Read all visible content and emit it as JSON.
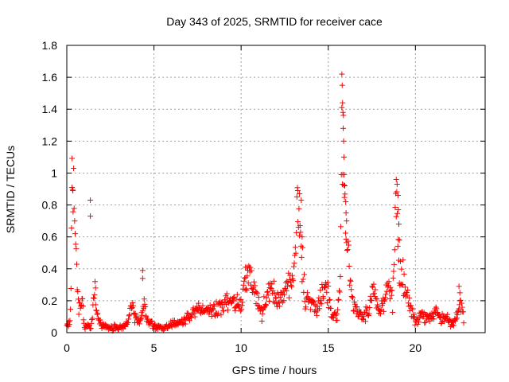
{
  "chart_data": {
    "type": "scatter",
    "title": "Day 343 of 2025, SRMTID for receiver cace",
    "xlabel": "GPS time / hours",
    "ylabel": "SRMTID / TECUs",
    "xlim": [
      0,
      24
    ],
    "ylim": [
      0,
      1.8
    ],
    "x_ticks": [
      0,
      5,
      10,
      15,
      20
    ],
    "x_tick_labels": [
      "0",
      "5",
      "10",
      "15",
      "20"
    ],
    "y_ticks": [
      0,
      0.2,
      0.4,
      0.6,
      0.8,
      1.0,
      1.2,
      1.4,
      1.6,
      1.8
    ],
    "y_tick_labels": [
      "0",
      "0.2",
      "0.4",
      "0.6",
      "0.8",
      "1",
      "1.2",
      "1.4",
      "1.6",
      "1.8"
    ],
    "grid": true,
    "marker": "+",
    "color": "#ff0000",
    "series": [
      {
        "name": "SRMTID",
        "profile": [
          [
            0.0,
            0.05
          ],
          [
            0.2,
            0.06
          ],
          [
            0.3,
            0.9
          ],
          [
            0.4,
            0.88
          ],
          [
            0.5,
            0.55
          ],
          [
            0.6,
            0.3
          ],
          [
            0.7,
            0.15
          ],
          [
            0.9,
            0.2
          ],
          [
            1.0,
            0.05
          ],
          [
            1.3,
            0.04
          ],
          [
            1.4,
            0.04
          ],
          [
            1.6,
            0.25
          ],
          [
            1.8,
            0.08
          ],
          [
            2.0,
            0.04
          ],
          [
            2.5,
            0.03
          ],
          [
            3.0,
            0.03
          ],
          [
            3.5,
            0.05
          ],
          [
            3.7,
            0.18
          ],
          [
            3.9,
            0.1
          ],
          [
            4.2,
            0.06
          ],
          [
            4.4,
            0.2
          ],
          [
            4.6,
            0.08
          ],
          [
            5.0,
            0.04
          ],
          [
            5.5,
            0.03
          ],
          [
            6.0,
            0.05
          ],
          [
            6.5,
            0.06
          ],
          [
            7.0,
            0.1
          ],
          [
            7.5,
            0.14
          ],
          [
            8.0,
            0.15
          ],
          [
            8.5,
            0.14
          ],
          [
            9.0,
            0.17
          ],
          [
            9.5,
            0.2
          ],
          [
            10.0,
            0.17
          ],
          [
            10.2,
            0.3
          ],
          [
            10.5,
            0.33
          ],
          [
            10.8,
            0.25
          ],
          [
            11.0,
            0.2
          ],
          [
            11.2,
            0.12
          ],
          [
            11.5,
            0.25
          ],
          [
            11.8,
            0.28
          ],
          [
            12.0,
            0.22
          ],
          [
            12.3,
            0.2
          ],
          [
            12.6,
            0.3
          ],
          [
            12.9,
            0.35
          ],
          [
            13.1,
            0.45
          ],
          [
            13.3,
            0.82
          ],
          [
            13.5,
            0.45
          ],
          [
            13.7,
            0.2
          ],
          [
            14.0,
            0.2
          ],
          [
            14.3,
            0.15
          ],
          [
            14.6,
            0.22
          ],
          [
            14.9,
            0.32
          ],
          [
            15.2,
            0.12
          ],
          [
            15.5,
            0.1
          ],
          [
            15.7,
            0.35
          ],
          [
            15.8,
            1.45
          ],
          [
            15.9,
            1.0
          ],
          [
            16.0,
            0.65
          ],
          [
            16.2,
            0.4
          ],
          [
            16.4,
            0.2
          ],
          [
            16.7,
            0.12
          ],
          [
            17.0,
            0.1
          ],
          [
            17.3,
            0.15
          ],
          [
            17.6,
            0.3
          ],
          [
            17.9,
            0.12
          ],
          [
            18.2,
            0.2
          ],
          [
            18.5,
            0.28
          ],
          [
            18.7,
            0.2
          ],
          [
            18.9,
            0.88
          ],
          [
            19.1,
            0.4
          ],
          [
            19.4,
            0.3
          ],
          [
            19.7,
            0.18
          ],
          [
            20.0,
            0.08
          ],
          [
            20.3,
            0.12
          ],
          [
            20.6,
            0.08
          ],
          [
            20.9,
            0.1
          ],
          [
            21.2,
            0.14
          ],
          [
            21.5,
            0.08
          ],
          [
            21.8,
            0.1
          ],
          [
            22.1,
            0.06
          ],
          [
            22.4,
            0.1
          ],
          [
            22.6,
            0.2
          ],
          [
            22.8,
            0.06
          ]
        ],
        "isolated_points": [
          [
            0.3,
            0.91
          ],
          [
            0.35,
            0.89
          ],
          [
            1.35,
            0.83
          ],
          [
            1.35,
            0.73
          ],
          [
            1.65,
            0.28
          ],
          [
            4.35,
            0.39
          ],
          [
            4.35,
            0.34
          ],
          [
            10.25,
            0.41
          ],
          [
            10.35,
            0.41
          ],
          [
            13.25,
            0.89
          ],
          [
            13.35,
            0.87
          ],
          [
            13.45,
            0.83
          ],
          [
            13.5,
            0.6
          ],
          [
            15.78,
            1.62
          ],
          [
            15.8,
            1.55
          ],
          [
            15.82,
            1.44
          ],
          [
            15.84,
            1.38
          ],
          [
            15.86,
            1.28
          ],
          [
            15.88,
            1.2
          ],
          [
            15.9,
            1.1
          ],
          [
            15.92,
            0.99
          ],
          [
            15.95,
            0.92
          ],
          [
            16.0,
            0.82
          ],
          [
            16.02,
            0.75
          ],
          [
            16.05,
            0.7
          ],
          [
            18.9,
            0.96
          ],
          [
            18.95,
            0.93
          ],
          [
            19.0,
            0.86
          ],
          [
            19.02,
            0.77
          ],
          [
            19.05,
            0.68
          ],
          [
            19.08,
            0.58
          ],
          [
            22.5,
            0.29
          ],
          [
            22.55,
            0.25
          ]
        ]
      }
    ]
  }
}
